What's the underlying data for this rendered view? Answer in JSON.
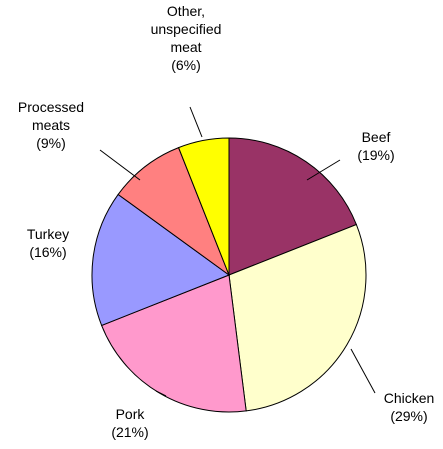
{
  "chart_data": {
    "type": "pie",
    "title": "",
    "slices": [
      {
        "name": "Beef",
        "label_lines": [
          "Beef"
        ],
        "value": 19,
        "display": "(19%)",
        "color": "#993366"
      },
      {
        "name": "Chicken",
        "label_lines": [
          "Chicken"
        ],
        "value": 29,
        "display": "(29%)",
        "color": "#FFFFCC"
      },
      {
        "name": "Pork",
        "label_lines": [
          "Pork"
        ],
        "value": 21,
        "display": "(21%)",
        "color": "#FF99CC"
      },
      {
        "name": "Turkey",
        "label_lines": [
          "Turkey"
        ],
        "value": 16,
        "display": "(16%)",
        "color": "#9999FF"
      },
      {
        "name": "Processed meats",
        "label_lines": [
          "Processed",
          "meats"
        ],
        "value": 9,
        "display": "(9%)",
        "color": "#FF8080"
      },
      {
        "name": "Other, unspecified meat",
        "label_lines": [
          "Other,",
          "unspecified",
          "meat"
        ],
        "value": 6,
        "display": "(6%)",
        "color": "#FFFF00"
      }
    ],
    "start_angle": "12 o'clock",
    "direction": "clockwise",
    "legend": "none"
  }
}
